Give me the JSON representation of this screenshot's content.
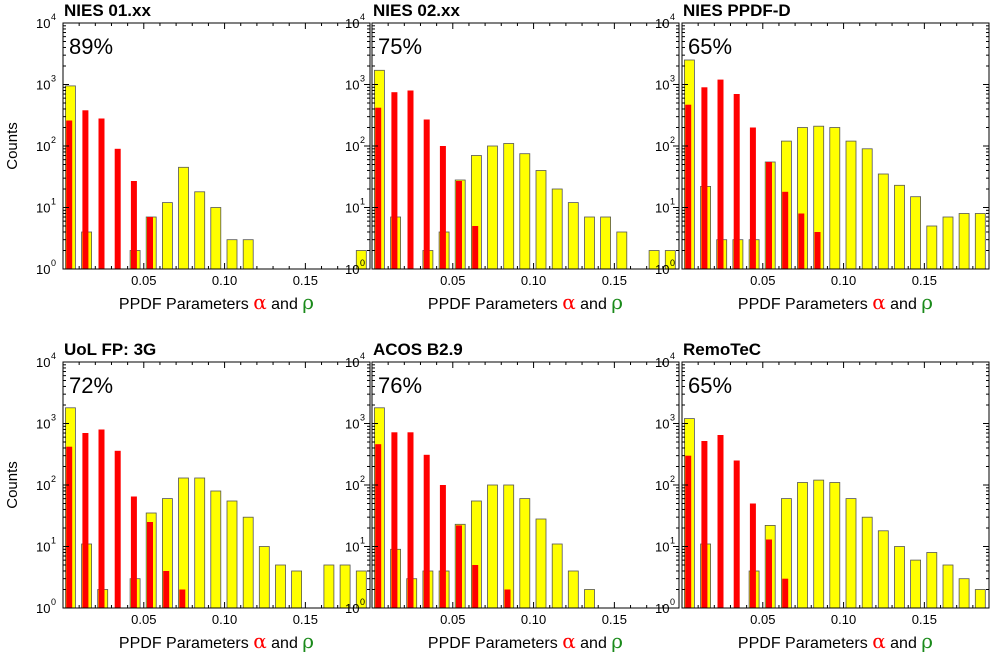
{
  "figure": {
    "ylabel": "Counts",
    "xlabel_prefix": "PPDF Parameters ",
    "xlabel_alpha": "α",
    "xlabel_mid": " and ",
    "xlabel_rho": "ρ",
    "alpha_color": "#ff0000",
    "rho_color": "#1a8a1a"
  },
  "chart_data": [
    {
      "type": "bar",
      "title": "NIES 01.xx",
      "percent": "89%",
      "xlim": [
        0,
        0.19
      ],
      "ylim": [
        1,
        10000
      ],
      "yscale": "log",
      "xticks": [
        "0.05",
        "0.10",
        "0.15"
      ],
      "yticks": [
        1,
        10,
        100,
        1000,
        10000
      ],
      "series": [
        {
          "color": "#ffff00",
          "x": [
            0.0025,
            0.0125,
            0.0225,
            0.0325,
            0.0425,
            0.0525,
            0.0625,
            0.0725,
            0.0825,
            0.0925,
            0.1025,
            0.1125,
            0.1225,
            0.1325,
            0.1425,
            0.1525,
            0.1625,
            0.1725,
            0.1825
          ],
          "values": [
            950,
            4,
            0,
            0,
            2,
            7,
            12,
            45,
            18,
            10,
            3,
            3,
            0,
            0,
            0,
            0,
            0,
            0,
            2
          ]
        },
        {
          "color": "#ff0000",
          "x": [
            0.0025,
            0.0125,
            0.0225,
            0.0325,
            0.0425,
            0.0525
          ],
          "values": [
            260,
            380,
            280,
            90,
            27,
            7
          ]
        }
      ]
    },
    {
      "type": "bar",
      "title": "NIES 02.xx",
      "percent": "75%",
      "xlim": [
        0,
        0.19
      ],
      "ylim": [
        1,
        10000
      ],
      "yscale": "log",
      "xticks": [
        "0.05",
        "0.10",
        "0.15"
      ],
      "yticks": [
        1,
        10,
        100,
        1000,
        10000
      ],
      "series": [
        {
          "color": "#ffff00",
          "x": [
            0.0025,
            0.0125,
            0.0225,
            0.0325,
            0.0425,
            0.0525,
            0.0625,
            0.0725,
            0.0825,
            0.0925,
            0.1025,
            0.1125,
            0.1225,
            0.1325,
            0.1425,
            0.1525,
            0.1625,
            0.1725,
            0.1825
          ],
          "values": [
            1700,
            7,
            0,
            2,
            4,
            28,
            70,
            100,
            110,
            75,
            40,
            20,
            12,
            7,
            7,
            4,
            0,
            2,
            2
          ]
        },
        {
          "color": "#ff0000",
          "x": [
            0.0025,
            0.0125,
            0.0225,
            0.0325,
            0.0425,
            0.0525,
            0.0625
          ],
          "values": [
            420,
            750,
            800,
            270,
            100,
            27,
            5
          ]
        }
      ]
    },
    {
      "type": "bar",
      "title": "NIES PPDF-D",
      "percent": "65%",
      "xlim": [
        0,
        0.19
      ],
      "ylim": [
        1,
        10000
      ],
      "yscale": "log",
      "xticks": [
        "0.05",
        "0.10",
        "0.15"
      ],
      "yticks": [
        1,
        10,
        100,
        1000,
        10000
      ],
      "series": [
        {
          "color": "#ffff00",
          "x": [
            0.0025,
            0.0125,
            0.0225,
            0.0325,
            0.0425,
            0.0525,
            0.0625,
            0.0725,
            0.0825,
            0.0925,
            0.1025,
            0.1125,
            0.1225,
            0.1325,
            0.1425,
            0.1525,
            0.1625,
            0.1725,
            0.1825,
            0.1925
          ],
          "values": [
            2500,
            22,
            3,
            3,
            3,
            55,
            120,
            200,
            210,
            200,
            120,
            90,
            35,
            23,
            15,
            5,
            7,
            8,
            8,
            4
          ]
        },
        {
          "color": "#ff0000",
          "x": [
            0.0025,
            0.0125,
            0.0225,
            0.0325,
            0.0425,
            0.0525,
            0.0625,
            0.0725,
            0.0825,
            0.0925
          ],
          "values": [
            470,
            900,
            1200,
            700,
            200,
            55,
            18,
            8,
            4,
            0
          ]
        }
      ]
    },
    {
      "type": "bar",
      "title": "UoL FP: 3G",
      "percent": "72%",
      "xlim": [
        0,
        0.19
      ],
      "ylim": [
        1,
        10000
      ],
      "yscale": "log",
      "xticks": [
        "0.05",
        "0.10",
        "0.15"
      ],
      "yticks": [
        1,
        10,
        100,
        1000,
        10000
      ],
      "series": [
        {
          "color": "#ffff00",
          "x": [
            0.0025,
            0.0125,
            0.0225,
            0.0325,
            0.0425,
            0.0525,
            0.0625,
            0.0725,
            0.0825,
            0.0925,
            0.1025,
            0.1125,
            0.1225,
            0.1325,
            0.1425,
            0.1525,
            0.1625,
            0.1725,
            0.1825
          ],
          "values": [
            1800,
            11,
            2,
            0,
            3,
            35,
            60,
            130,
            130,
            80,
            55,
            30,
            10,
            5,
            4,
            0,
            5,
            5,
            4
          ]
        },
        {
          "color": "#ff0000",
          "x": [
            0.0025,
            0.0125,
            0.0225,
            0.0325,
            0.0425,
            0.0525,
            0.0625,
            0.0725
          ],
          "values": [
            420,
            700,
            800,
            360,
            65,
            25,
            4,
            2
          ]
        }
      ]
    },
    {
      "type": "bar",
      "title": "ACOS B2.9",
      "percent": "76%",
      "xlim": [
        0,
        0.19
      ],
      "ylim": [
        1,
        10000
      ],
      "yscale": "log",
      "xticks": [
        "0.05",
        "0.10",
        "0.15"
      ],
      "yticks": [
        1,
        10,
        100,
        1000,
        10000
      ],
      "series": [
        {
          "color": "#ffff00",
          "x": [
            0.0025,
            0.0125,
            0.0225,
            0.0325,
            0.0425,
            0.0525,
            0.0625,
            0.0725,
            0.0825,
            0.0925,
            0.1025,
            0.1125,
            0.1225,
            0.1325
          ],
          "values": [
            1800,
            9,
            3,
            4,
            4,
            23,
            55,
            100,
            100,
            60,
            28,
            11,
            4,
            2
          ]
        },
        {
          "color": "#ff0000",
          "x": [
            0.0025,
            0.0125,
            0.0225,
            0.0325,
            0.0425,
            0.0525,
            0.0625,
            0.0725,
            0.0825
          ],
          "values": [
            460,
            720,
            720,
            310,
            100,
            22,
            5,
            0,
            2
          ]
        }
      ]
    },
    {
      "type": "bar",
      "title": "RemoTeC",
      "percent": "65%",
      "xlim": [
        0,
        0.19
      ],
      "ylim": [
        1,
        10000
      ],
      "yscale": "log",
      "xticks": [
        "0.05",
        "0.10",
        "0.15"
      ],
      "yticks": [
        1,
        10,
        100,
        1000,
        10000
      ],
      "series": [
        {
          "color": "#ffff00",
          "x": [
            0.0025,
            0.0125,
            0.0225,
            0.0325,
            0.0425,
            0.0525,
            0.0625,
            0.0725,
            0.0825,
            0.0925,
            0.1025,
            0.1125,
            0.1225,
            0.1325,
            0.1425,
            0.1525,
            0.1625,
            0.1725,
            0.1825
          ],
          "values": [
            1200,
            11,
            0,
            0,
            4,
            22,
            60,
            110,
            120,
            110,
            60,
            30,
            18,
            10,
            6,
            8,
            5,
            3,
            2
          ]
        },
        {
          "color": "#ff0000",
          "x": [
            0.0025,
            0.0125,
            0.0225,
            0.0325,
            0.0425,
            0.0525,
            0.0625
          ],
          "values": [
            300,
            520,
            650,
            250,
            50,
            13,
            3
          ]
        }
      ]
    }
  ]
}
